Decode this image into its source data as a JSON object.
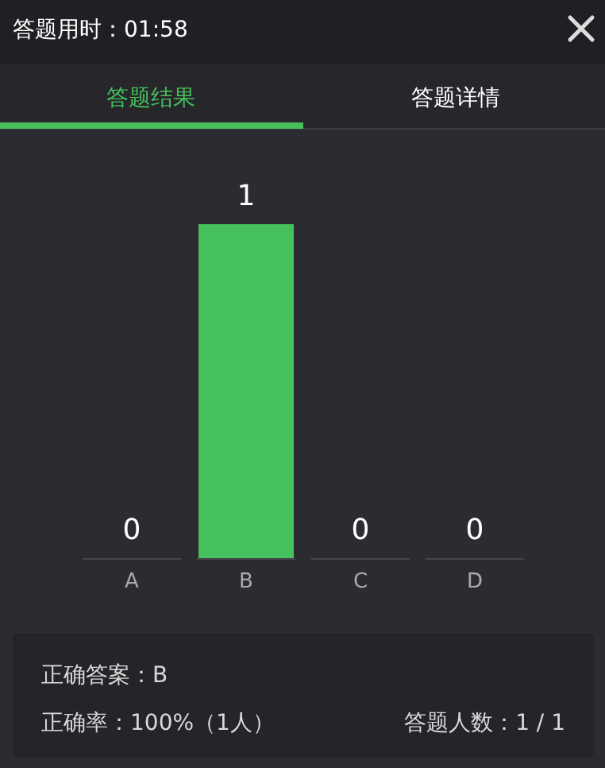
{
  "chart_data": {
    "type": "bar",
    "title": "答题用时：01:58",
    "categories": [
      "A",
      "B",
      "C",
      "D"
    ],
    "values": [
      0,
      1,
      0,
      0
    ],
    "color": "#45c05c",
    "data_labels": true,
    "annotations": [
      "答题结果",
      "答题详情",
      "正确答案：B",
      "正确率：100%（1人）",
      "答题人数：1 / 1"
    ]
  }
}
